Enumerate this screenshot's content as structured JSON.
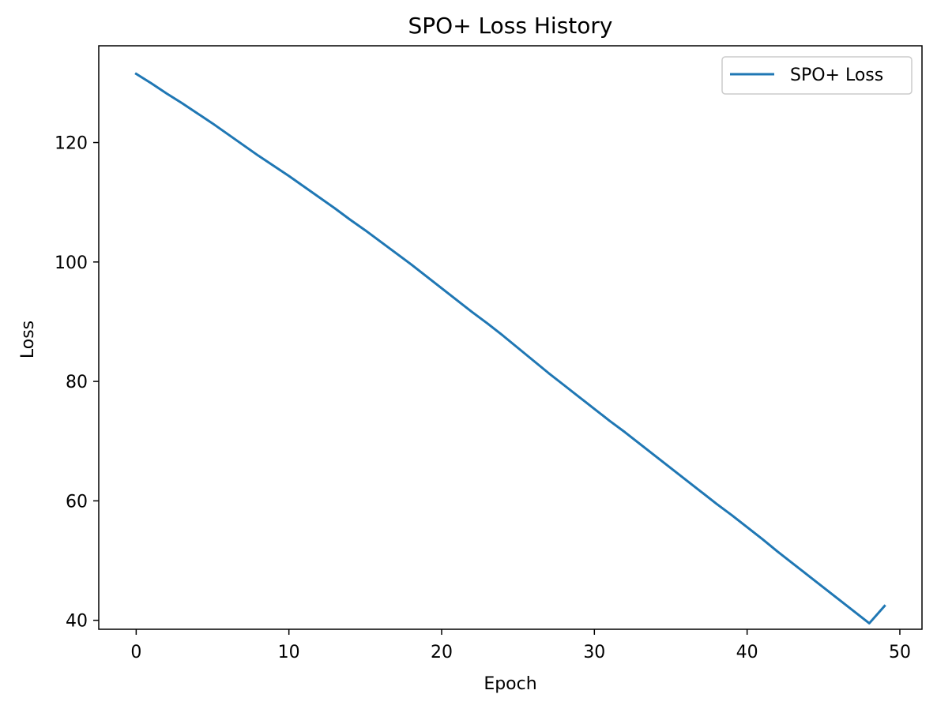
{
  "chart_data": {
    "type": "line",
    "title": "SPO+ Loss History",
    "xlabel": "Epoch",
    "ylabel": "Loss",
    "xlim": [
      -2.45,
      51.45
    ],
    "ylim": [
      38.5,
      136.2
    ],
    "xticks": [
      0,
      10,
      20,
      30,
      40,
      50
    ],
    "yticks": [
      40,
      60,
      80,
      100,
      120
    ],
    "grid": false,
    "legend": {
      "location": "top-right"
    },
    "series": [
      {
        "name": "SPO+ Loss",
        "color": "#1f77b4",
        "x": [
          0,
          1,
          2,
          3,
          4,
          5,
          6,
          7,
          8,
          9,
          10,
          11,
          12,
          13,
          14,
          15,
          16,
          17,
          18,
          19,
          20,
          21,
          22,
          23,
          24,
          25,
          26,
          27,
          28,
          29,
          30,
          31,
          32,
          33,
          34,
          35,
          36,
          37,
          38,
          39,
          40,
          41,
          42,
          43,
          44,
          45,
          46,
          47,
          48,
          49
        ],
        "values": [
          131.5,
          129.9,
          128.2,
          126.6,
          124.9,
          123.2,
          121.4,
          119.6,
          117.8,
          116.1,
          114.4,
          112.6,
          110.8,
          109.0,
          107.1,
          105.3,
          103.4,
          101.5,
          99.6,
          97.6,
          95.6,
          93.6,
          91.6,
          89.7,
          87.7,
          85.6,
          83.5,
          81.4,
          79.4,
          77.4,
          75.4,
          73.4,
          71.5,
          69.5,
          67.5,
          65.5,
          63.5,
          61.5,
          59.5,
          57.6,
          55.6,
          53.6,
          51.5,
          49.5,
          47.5,
          45.5,
          43.5,
          41.5,
          39.5,
          42.4
        ]
      }
    ]
  }
}
